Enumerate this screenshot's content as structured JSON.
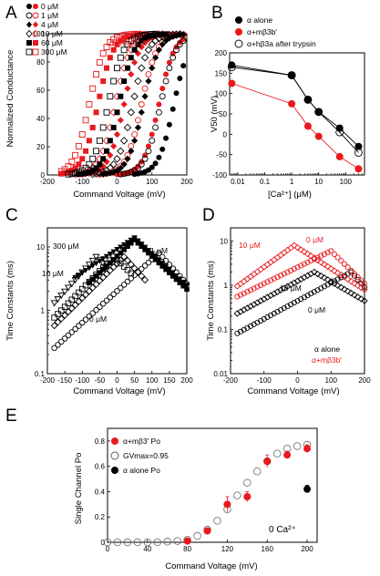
{
  "colors": {
    "red": "#e8191d",
    "black": "#000000",
    "grey": "#777777"
  },
  "chart_data": [
    {
      "panel": "A",
      "type": "scatter",
      "xlabel": "Command Voltage (mV)",
      "ylabel": "Normalized Conductance",
      "xlim": [
        -200,
        200
      ],
      "ylim": [
        0,
        100
      ],
      "xticks": [
        "-200",
        "-100",
        "0",
        "100",
        "200"
      ],
      "yticks": [
        "0",
        "20",
        "40",
        "60",
        "80",
        "100"
      ],
      "legend": [
        "0 μM",
        "1 μM",
        "4 μM",
        "10 μM",
        "60 μM",
        "300 μM"
      ],
      "annotation": "α+mβ3' α",
      "series": [
        {
          "conc": "0 μM",
          "marker": "circle-filled",
          "black_v50": 163,
          "red_v50": 120
        },
        {
          "conc": "1 μM",
          "marker": "circle-open",
          "black_v50": 125,
          "red_v50": 70
        },
        {
          "conc": "4 μM",
          "marker": "diamond-filled",
          "black_v50": 75,
          "red_v50": 20
        },
        {
          "conc": "10 μM",
          "marker": "diamond-open",
          "black_v50": 45,
          "red_v50": -5
        },
        {
          "conc": "60 μM",
          "marker": "square-filled",
          "black_v50": 5,
          "red_v50": -55
        },
        {
          "conc": "300 μM",
          "marker": "square-open",
          "black_v50": -25,
          "red_v50": -80
        }
      ]
    },
    {
      "panel": "B",
      "type": "line",
      "xlabel": "[Ca²⁺] (μM)",
      "ylabel": "V50 (mV)",
      "xscale": "log",
      "xlim": [
        0.005,
        500
      ],
      "ylim": [
        -100,
        200
      ],
      "xticks": [
        "0.01",
        "0.1",
        "1",
        "10",
        "100"
      ],
      "yticks": [
        "-100",
        "-50",
        "0",
        "50",
        "100",
        "150",
        "200"
      ],
      "x": [
        0.006,
        1,
        4,
        10,
        60,
        300
      ],
      "series": [
        {
          "name": "α alone",
          "marker": "circle-filled",
          "color": "#000000",
          "values": [
            170,
            145,
            85,
            55,
            15,
            -30
          ]
        },
        {
          "name": "α+mβ3b'",
          "marker": "circle-filled",
          "color": "#e8191d",
          "values": [
            125,
            75,
            20,
            -5,
            -55,
            -85
          ]
        },
        {
          "name": "α+hβ3a after trypsin",
          "marker": "circle-open",
          "color": "#000000",
          "values": [
            165,
            145,
            85,
            55,
            5,
            -45
          ]
        }
      ]
    },
    {
      "panel": "C",
      "type": "scatter",
      "xlabel": "Command Voltage (mV)",
      "ylabel": "Time Constants (ms)",
      "yscale": "log",
      "xlim": [
        -200,
        200
      ],
      "ylim": [
        0.1,
        20
      ],
      "xticks": [
        "-200",
        "-150",
        "-100",
        "-50",
        "0",
        "50",
        "100",
        "150",
        "200"
      ],
      "yticks": [
        "0.1",
        "1",
        "10"
      ],
      "labels": [
        "300 μM",
        "1 μM",
        "10 μM",
        "0 μM"
      ]
    },
    {
      "panel": "D",
      "type": "scatter",
      "xlabel": "Command Voltage (mV)",
      "ylabel": "Time Constants (ms)",
      "yscale": "log",
      "xlim": [
        -200,
        200
      ],
      "ylim": [
        0.01,
        20
      ],
      "xticks": [
        "-200",
        "-100",
        "0",
        "100",
        "200"
      ],
      "yticks": [
        "0.01",
        "0.1",
        "1",
        "10"
      ],
      "labels": [
        "10 μM",
        "0 μM",
        "10 μM",
        "0 μM"
      ],
      "legend": [
        "α alone",
        "α+mβ3b'"
      ]
    },
    {
      "panel": "E",
      "type": "scatter",
      "xlabel": "Command Voltage (mV)",
      "ylabel": "Single Channel Po",
      "xlim": [
        0,
        210
      ],
      "ylim": [
        0,
        0.9
      ],
      "xticks": [
        "0",
        "40",
        "80",
        "120",
        "160",
        "200"
      ],
      "yticks": [
        "0",
        "0.2",
        "0.4",
        "0.6",
        "0.8"
      ],
      "legend": [
        "α+mβ3' Po",
        "GVmax=0.95",
        "α alone Po"
      ],
      "annotation": "0 Ca²⁺",
      "series": [
        {
          "name": "α+mβ3' Po",
          "marker": "circle-filled",
          "color": "#e8191d",
          "x": [
            80,
            100,
            120,
            140,
            160,
            180,
            200
          ],
          "values": [
            0.01,
            0.09,
            0.3,
            0.36,
            0.64,
            0.69,
            0.74
          ],
          "err": [
            0.005,
            0.02,
            0.06,
            0.04,
            0.05,
            0.03,
            0.03
          ]
        },
        {
          "name": "GVmax=0.95",
          "marker": "circle-open",
          "color": "#000000",
          "x": [
            0,
            10,
            20,
            30,
            40,
            50,
            60,
            70,
            80,
            90,
            100,
            110,
            120,
            130,
            140,
            150,
            160,
            170,
            180,
            190,
            200
          ],
          "values": [
            0,
            0,
            0,
            0,
            0,
            0,
            0.005,
            0.01,
            0.02,
            0.05,
            0.1,
            0.17,
            0.26,
            0.37,
            0.47,
            0.56,
            0.64,
            0.7,
            0.74,
            0.76,
            0.77
          ]
        },
        {
          "name": "α alone Po",
          "marker": "circle-filled",
          "color": "#000000",
          "x": [
            200
          ],
          "values": [
            0.42
          ],
          "err": [
            0.03
          ]
        }
      ]
    }
  ]
}
